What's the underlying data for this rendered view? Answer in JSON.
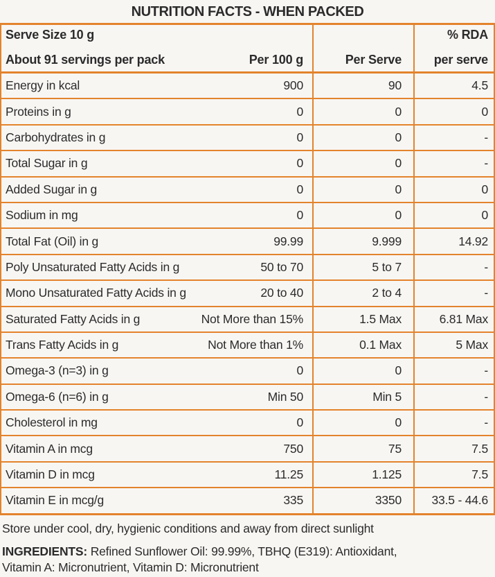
{
  "title": "NUTRITION FACTS - WHEN PACKED",
  "colors": {
    "border": "#e3832c",
    "text": "#2b2b2b",
    "background": "#f8f6f3"
  },
  "table": {
    "header": {
      "serve_size": "Serve Size 10 g",
      "servings": "About 91 servings per pack",
      "col_per_100g": "Per 100 g",
      "col_per_serve": "Per Serve",
      "col_rda_line1": "% RDA",
      "col_rda_line2": "per serve"
    },
    "rows": [
      {
        "label": "Energy in kcal",
        "per_100g": "900",
        "per_serve": "90",
        "rda": "4.5"
      },
      {
        "label": "Proteins in g",
        "per_100g": "0",
        "per_serve": "0",
        "rda": "0"
      },
      {
        "label": "Carbohydrates in g",
        "per_100g": "0",
        "per_serve": "0",
        "rda": "-"
      },
      {
        "label": "Total Sugar in g",
        "per_100g": "0",
        "per_serve": "0",
        "rda": "-"
      },
      {
        "label": "Added Sugar in g",
        "per_100g": "0",
        "per_serve": "0",
        "rda": "0"
      },
      {
        "label": "Sodium in mg",
        "per_100g": "0",
        "per_serve": "0",
        "rda": "0"
      },
      {
        "label": "Total Fat (Oil) in g",
        "per_100g": "99.99",
        "per_serve": "9.999",
        "rda": "14.92"
      },
      {
        "label": "Poly Unsaturated Fatty Acids in g",
        "per_100g": "50 to 70",
        "per_serve": "5 to 7",
        "rda": "-"
      },
      {
        "label": "Mono Unsaturated Fatty Acids in g",
        "per_100g": "20 to 40",
        "per_serve": "2 to 4",
        "rda": "-"
      },
      {
        "label": "Saturated Fatty Acids in g",
        "per_100g": "Not More than 15%",
        "per_serve": "1.5 Max",
        "rda": "6.81 Max"
      },
      {
        "label": "Trans Fatty Acids in g",
        "per_100g": "Not More than 1%",
        "per_serve": "0.1 Max",
        "rda": "5 Max"
      },
      {
        "label": "Omega-3 (n=3) in g",
        "per_100g": "0",
        "per_serve": "0",
        "rda": "-"
      },
      {
        "label": "Omega-6 (n=6) in g",
        "per_100g": "Min 50",
        "per_serve": "Min 5",
        "rda": "-"
      },
      {
        "label": "Cholesterol in mg",
        "per_100g": "0",
        "per_serve": "0",
        "rda": "-"
      },
      {
        "label": "Vitamin A in mcg",
        "per_100g": "750",
        "per_serve": "75",
        "rda": "7.5"
      },
      {
        "label": "Vitamin D in mcg",
        "per_100g": "11.25",
        "per_serve": "1.125",
        "rda": "7.5"
      },
      {
        "label": "Vitamin E in mcg/g",
        "per_100g": "335",
        "per_serve": "3350",
        "rda": "33.5 - 44.6"
      }
    ]
  },
  "footer": {
    "storage": "Store under cool, dry, hygienic conditions and away from direct sunlight",
    "ingredients_label": "INGREDIENTS:",
    "ingredients_line1": "Refined Sunflower Oil: 99.99%, TBHQ (E319): Antioxidant,",
    "ingredients_line2": "Vitamin A: Micronutrient, Vitamin D: Micronutrient"
  }
}
